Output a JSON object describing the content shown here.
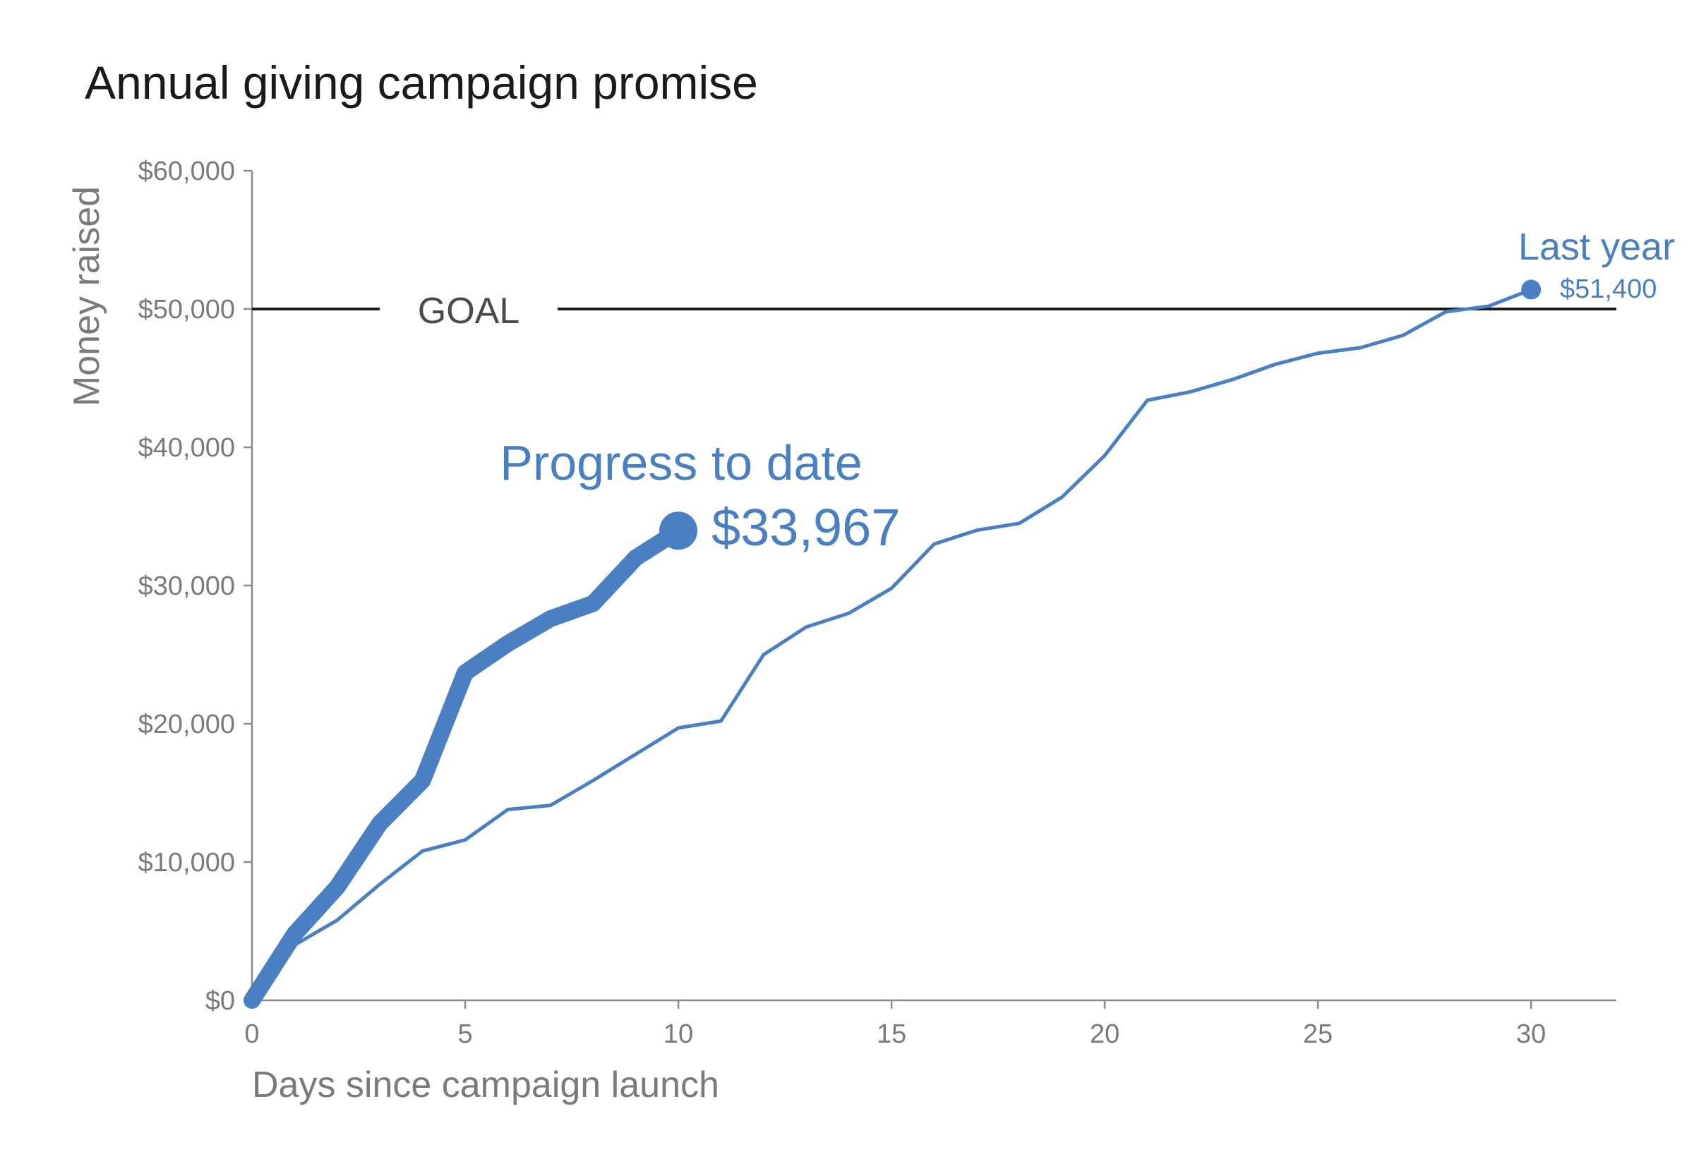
{
  "chart_data": {
    "type": "line",
    "title": "Annual giving campaign promise",
    "xlabel": "Days since campaign launch",
    "ylabel": "Money raised",
    "xlim": [
      0,
      32
    ],
    "ylim": [
      0,
      60000
    ],
    "x_ticks": [
      0,
      5,
      10,
      15,
      20,
      25,
      30
    ],
    "y_ticks": [
      0,
      10000,
      20000,
      30000,
      40000,
      50000,
      60000
    ],
    "y_tick_labels": [
      "$0",
      "$10,000",
      "$20,000",
      "$30,000",
      "$40,000",
      "$50,000",
      "$60,000"
    ],
    "grid": false,
    "goal": {
      "label": "GOAL",
      "value": 50000
    },
    "series": [
      {
        "name": "Last year",
        "end_label": "$51,400",
        "color": "#4a7fc1",
        "x": [
          0,
          1,
          2,
          3,
          4,
          5,
          6,
          7,
          8,
          9,
          10,
          11,
          12,
          13,
          14,
          15,
          16,
          17,
          18,
          19,
          20,
          21,
          22,
          23,
          24,
          25,
          26,
          27,
          28,
          29,
          30
        ],
        "values": [
          0,
          4000,
          5800,
          8400,
          10800,
          11600,
          13800,
          14100,
          15900,
          17800,
          19700,
          20200,
          25000,
          27000,
          28000,
          29800,
          33000,
          34000,
          34500,
          36400,
          39400,
          43400,
          44000,
          44900,
          46000,
          46800,
          47200,
          48100,
          49800,
          50200,
          51400
        ]
      },
      {
        "name": "Progress to date",
        "end_label": "$33,967",
        "color": "#4a7fc1",
        "x": [
          0,
          1,
          2,
          3,
          4,
          5,
          6,
          7,
          8,
          9,
          10
        ],
        "values": [
          0,
          4800,
          8200,
          12800,
          15900,
          23700,
          25800,
          27600,
          28700,
          32000,
          33967
        ]
      }
    ]
  }
}
